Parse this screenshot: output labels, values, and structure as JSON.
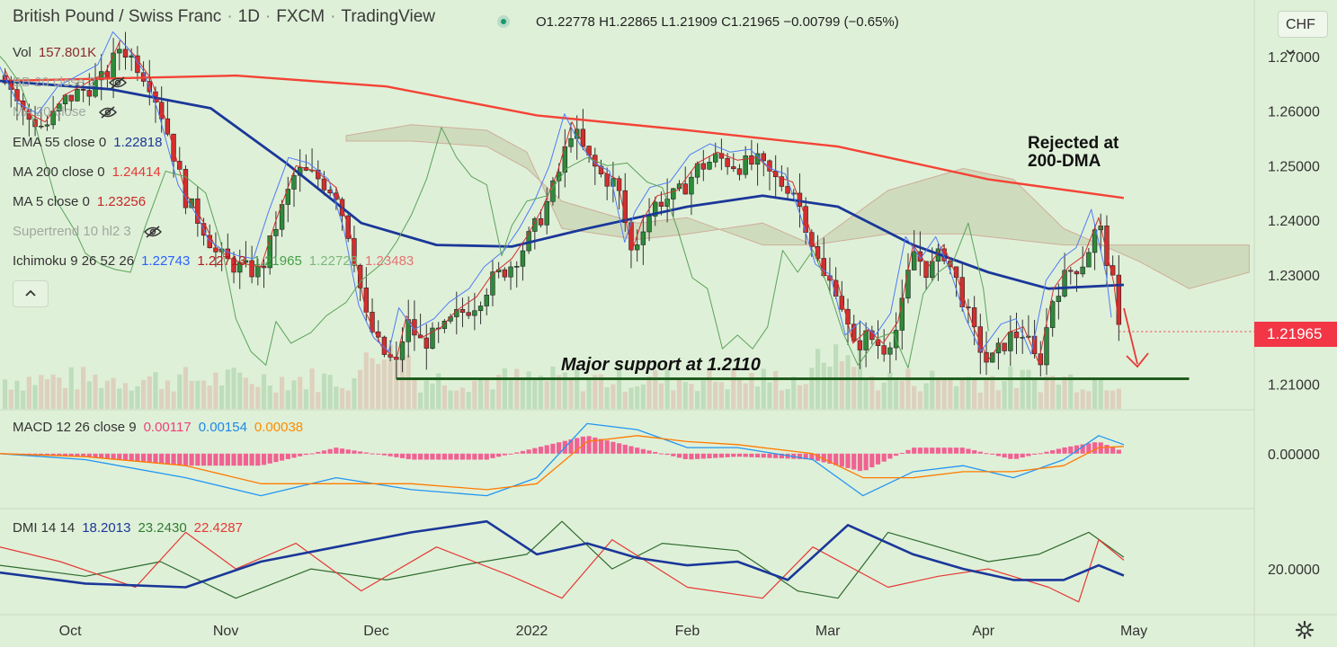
{
  "header": {
    "symbol": "British Pound / Swiss Franc",
    "interval": "1D",
    "exchange": "FXCM",
    "platform": "TradingView",
    "ohlc": {
      "o_label": "O",
      "o": "1.22778",
      "h_label": "H",
      "h": "1.22865",
      "l_label": "L",
      "l": "1.21909",
      "c_label": "C",
      "c": "1.21965",
      "change": "−0.00799 (−0.65%)"
    }
  },
  "legend": {
    "vol": {
      "name": "Vol",
      "value": "157.801K"
    },
    "bb": {
      "name": "BB 20 close 2"
    },
    "hidden2": {
      "name": "MA 20 close"
    },
    "ema55": {
      "name": "EMA 55 close 0",
      "value": "1.22818"
    },
    "ma200": {
      "name": "MA 200 close 0",
      "value": "1.24414"
    },
    "ma5": {
      "name": "MA 5 close 0",
      "value": "1.23256"
    },
    "supertrend": {
      "name": "Supertrend 10 hl2 3"
    },
    "ichimoku": {
      "name": "Ichimoku 9 26 52 26",
      "v1": "1.22743",
      "v2": "1.22713",
      "v3": "1.21965",
      "v4": "1.22728",
      "v5": "1.23483"
    }
  },
  "macd_legend": {
    "name": "MACD 12 26 close 9",
    "v1": "0.00117",
    "v2": "0.00154",
    "v3": "0.00038"
  },
  "dmi_legend": {
    "name": "DMI 14 14",
    "v1": "18.2013",
    "v2": "23.2430",
    "v3": "22.4287"
  },
  "currency_button": "CHF",
  "price_tag": "1.21965",
  "annotations": {
    "rejected_line1": "Rejected at",
    "rejected_line2": "200-DMA",
    "support": "Major support at 1.2110"
  },
  "icons": {
    "eye": "eye-off-icon",
    "collapse": "chevron-up-icon",
    "currency": "chevron-down-icon",
    "settings": "gear-icon"
  },
  "colors": {
    "up": "#2e8b3a",
    "down": "#d32f2f",
    "ma200": "#f44336",
    "ema55": "#1a3799",
    "ma5": "#d32f2f",
    "support": "#1e5d1e",
    "macd": "#2196f3",
    "signal": "#ff7a00",
    "hist": "#f06292"
  },
  "chart_data": [
    {
      "type": "candlestick",
      "title": "British Pound / Swiss Franc",
      "y_ticks": [
        "1.21000",
        "1.22000",
        "1.23000",
        "1.24000",
        "1.25000",
        "1.26000",
        "1.27000"
      ],
      "ylim": [
        1.2055,
        1.2795
      ],
      "x_ticks": [
        {
          "label": "Oct",
          "day": 27
        },
        {
          "label": "Nov",
          "day": 58
        },
        {
          "label": "Dec",
          "day": 88
        },
        {
          "label": "2022",
          "day": 119
        },
        {
          "label": "Feb",
          "day": 150
        },
        {
          "label": "Mar",
          "day": 178
        },
        {
          "label": "Apr",
          "day": 209
        },
        {
          "label": "May",
          "day": 239
        }
      ],
      "xlim": [
        13,
        263
      ],
      "close_series": [
        [
          14,
          1.2665
        ],
        [
          18,
          1.259
        ],
        [
          22,
          1.257
        ],
        [
          26,
          1.262
        ],
        [
          30,
          1.264
        ],
        [
          34,
          1.266
        ],
        [
          37,
          1.272
        ],
        [
          40,
          1.269
        ],
        [
          43,
          1.265
        ],
        [
          46,
          1.2575
        ],
        [
          50,
          1.244
        ],
        [
          54,
          1.238
        ],
        [
          56,
          1.234
        ],
        [
          59,
          1.232
        ],
        [
          62,
          1.231
        ],
        [
          65,
          1.2305
        ],
        [
          68,
          1.239
        ],
        [
          72,
          1.249
        ],
        [
          76,
          1.248
        ],
        [
          80,
          1.245
        ],
        [
          83,
          1.236
        ],
        [
          86,
          1.222
        ],
        [
          89,
          1.216
        ],
        [
          92,
          1.2135
        ],
        [
          94,
          1.2215
        ],
        [
          97,
          1.2175
        ],
        [
          101,
          1.2195
        ],
        [
          104,
          1.2225
        ],
        [
          108,
          1.225
        ],
        [
          111,
          1.229
        ],
        [
          115,
          1.232
        ],
        [
          118,
          1.236
        ],
        [
          121,
          1.241
        ],
        [
          124,
          1.2475
        ],
        [
          127,
          1.257
        ],
        [
          130,
          1.2515
        ],
        [
          133,
          1.248
        ],
        [
          136,
          1.2465
        ],
        [
          139,
          1.2335
        ],
        [
          141,
          1.239
        ],
        [
          144,
          1.2435
        ],
        [
          148,
          1.2445
        ],
        [
          152,
          1.2495
        ],
        [
          156,
          1.2515
        ],
        [
          160,
          1.25
        ],
        [
          164,
          1.2505
        ],
        [
          168,
          1.247
        ],
        [
          171,
          1.246
        ],
        [
          174,
          1.2385
        ],
        [
          177,
          1.2295
        ],
        [
          180,
          1.2275
        ],
        [
          183,
          1.2165
        ],
        [
          186,
          1.219
        ],
        [
          189,
          1.2165
        ],
        [
          192,
          1.2205
        ],
        [
          195,
          1.2345
        ],
        [
          198,
          1.2305
        ],
        [
          201,
          1.2345
        ],
        [
          204,
          1.228
        ],
        [
          207,
          1.2195
        ],
        [
          210,
          1.2135
        ],
        [
          214,
          1.2185
        ],
        [
          217,
          1.2195
        ],
        [
          220,
          1.213
        ],
        [
          223,
          1.2265
        ],
        [
          226,
          1.2305
        ],
        [
          229,
          1.2325
        ],
        [
          232,
          1.2395
        ],
        [
          235,
          1.2275
        ],
        [
          236,
          1.2197
        ]
      ],
      "ma200": [
        [
          13,
          1.2655
        ],
        [
          60,
          1.2665
        ],
        [
          90,
          1.2645
        ],
        [
          120,
          1.2592
        ],
        [
          150,
          1.2565
        ],
        [
          180,
          1.2535
        ],
        [
          210,
          1.2475
        ],
        [
          237,
          1.2441
        ]
      ],
      "ema55": [
        [
          13,
          1.2655
        ],
        [
          35,
          1.264
        ],
        [
          55,
          1.2605
        ],
        [
          70,
          1.2505
        ],
        [
          85,
          1.2395
        ],
        [
          100,
          1.2355
        ],
        [
          115,
          1.2352
        ],
        [
          130,
          1.2385
        ],
        [
          150,
          1.2425
        ],
        [
          165,
          1.2445
        ],
        [
          180,
          1.2425
        ],
        [
          195,
          1.2355
        ],
        [
          210,
          1.2305
        ],
        [
          222,
          1.2275
        ],
        [
          237,
          1.2282
        ]
      ],
      "support": {
        "value": 1.211,
        "from": 92,
        "to": 250
      },
      "latest_close": 1.21965
    },
    {
      "type": "macd",
      "title": "MACD 12 26 close 9",
      "y_ticks": [
        "0.00000"
      ],
      "macd": [
        [
          13,
          0.0
        ],
        [
          30,
          -0.001
        ],
        [
          50,
          -0.004
        ],
        [
          65,
          -0.007
        ],
        [
          80,
          -0.004
        ],
        [
          95,
          -0.006
        ],
        [
          110,
          -0.007
        ],
        [
          120,
          -0.004
        ],
        [
          130,
          0.005
        ],
        [
          140,
          0.004
        ],
        [
          150,
          0.001
        ],
        [
          160,
          0.001
        ],
        [
          175,
          -0.001
        ],
        [
          185,
          -0.007
        ],
        [
          195,
          -0.003
        ],
        [
          205,
          -0.002
        ],
        [
          215,
          -0.004
        ],
        [
          225,
          -0.001
        ],
        [
          232,
          0.003
        ],
        [
          237,
          0.0015
        ]
      ],
      "signal": [
        [
          13,
          0.0
        ],
        [
          30,
          -0.0005
        ],
        [
          50,
          -0.002
        ],
        [
          65,
          -0.005
        ],
        [
          80,
          -0.005
        ],
        [
          95,
          -0.005
        ],
        [
          110,
          -0.006
        ],
        [
          120,
          -0.005
        ],
        [
          130,
          0.002
        ],
        [
          140,
          0.003
        ],
        [
          150,
          0.002
        ],
        [
          160,
          0.0015
        ],
        [
          175,
          0.0
        ],
        [
          185,
          -0.004
        ],
        [
          195,
          -0.004
        ],
        [
          205,
          -0.003
        ],
        [
          215,
          -0.003
        ],
        [
          225,
          -0.002
        ],
        [
          232,
          0.001
        ],
        [
          237,
          0.0012
        ]
      ],
      "ylim": [
        -0.009,
        0.007
      ]
    },
    {
      "type": "dmi",
      "title": "DMI 14 14",
      "y_ticks": [
        "20.0000"
      ],
      "adx": [
        [
          13,
          19
        ],
        [
          30,
          16
        ],
        [
          50,
          15
        ],
        [
          65,
          22
        ],
        [
          80,
          26
        ],
        [
          95,
          30
        ],
        [
          110,
          33
        ],
        [
          120,
          24
        ],
        [
          130,
          27
        ],
        [
          140,
          23
        ],
        [
          150,
          21
        ],
        [
          160,
          22
        ],
        [
          170,
          17
        ],
        [
          182,
          32
        ],
        [
          195,
          24
        ],
        [
          205,
          20
        ],
        [
          215,
          17
        ],
        [
          225,
          17
        ],
        [
          232,
          21
        ],
        [
          237,
          18.2
        ]
      ],
      "plus_di": [
        [
          13,
          21
        ],
        [
          30,
          18
        ],
        [
          45,
          22
        ],
        [
          60,
          12
        ],
        [
          75,
          20
        ],
        [
          90,
          17
        ],
        [
          105,
          21
        ],
        [
          118,
          24
        ],
        [
          125,
          33
        ],
        [
          135,
          20
        ],
        [
          145,
          27
        ],
        [
          160,
          25
        ],
        [
          172,
          14
        ],
        [
          180,
          12
        ],
        [
          190,
          30
        ],
        [
          200,
          26
        ],
        [
          210,
          22
        ],
        [
          220,
          24
        ],
        [
          230,
          30
        ],
        [
          237,
          23.2
        ]
      ],
      "minus_di": [
        [
          13,
          26
        ],
        [
          25,
          22
        ],
        [
          40,
          15
        ],
        [
          50,
          30
        ],
        [
          60,
          20
        ],
        [
          72,
          27
        ],
        [
          85,
          14
        ],
        [
          100,
          26
        ],
        [
          115,
          18
        ],
        [
          125,
          12
        ],
        [
          135,
          28
        ],
        [
          150,
          15
        ],
        [
          165,
          12
        ],
        [
          175,
          26
        ],
        [
          190,
          15
        ],
        [
          200,
          18
        ],
        [
          210,
          20
        ],
        [
          222,
          15
        ],
        [
          228,
          11
        ],
        [
          232,
          28
        ],
        [
          237,
          22.4
        ]
      ],
      "ylim": [
        8,
        36
      ]
    }
  ]
}
